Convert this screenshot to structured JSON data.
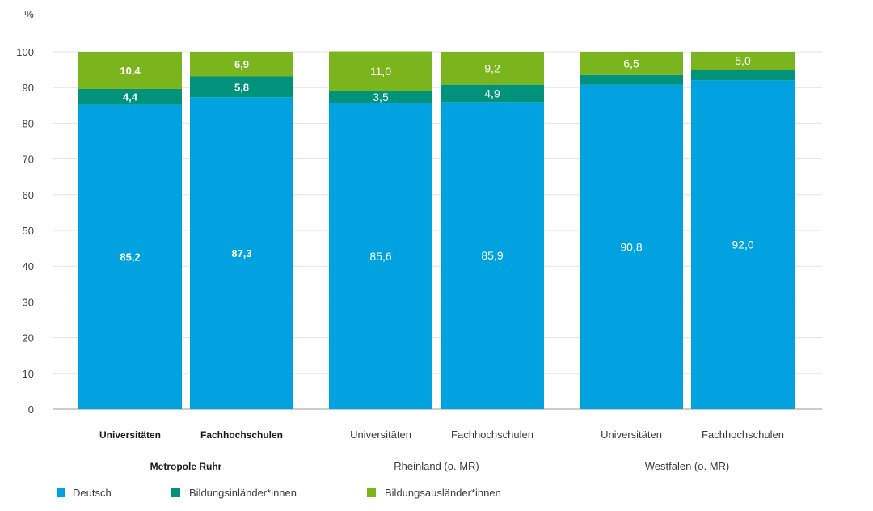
{
  "chart_data": {
    "type": "bar",
    "stacked": true,
    "ylabel": "%",
    "ylim": [
      0,
      100
    ],
    "yticks": [
      0,
      10,
      20,
      30,
      40,
      50,
      60,
      70,
      80,
      90,
      100
    ],
    "grid": true,
    "legend_position": "bottom-left",
    "groups": [
      {
        "label": "Metropole Ruhr",
        "bold": true,
        "categories": [
          "Universitäten",
          "Fachhochschulen"
        ]
      },
      {
        "label": "Rheinland (o. MR)",
        "bold": false,
        "categories": [
          "Universitäten",
          "Fachhochschulen"
        ]
      },
      {
        "label": "Westfalen (o. MR)",
        "bold": false,
        "categories": [
          "Universitäten",
          "Fachhochschulen"
        ]
      }
    ],
    "series": [
      {
        "name": "Deutsch",
        "color": "#00a3e0",
        "values": [
          85.2,
          87.3,
          85.6,
          85.9,
          90.8,
          92.0
        ],
        "labels": [
          "85,2",
          "87,3",
          "85,6",
          "85,9",
          "90,8",
          "92,0"
        ]
      },
      {
        "name": "Bildungsinländer*innen",
        "color": "#00927a",
        "values": [
          4.4,
          5.8,
          3.5,
          4.9,
          2.7,
          3.0
        ],
        "labels": [
          "4,4",
          "5,8",
          "3,5",
          "4,9",
          "",
          ""
        ]
      },
      {
        "name": "Bildungsausländer*innen",
        "color": "#7ab51d",
        "values": [
          10.4,
          6.9,
          11.0,
          9.2,
          6.5,
          5.0
        ],
        "labels": [
          "10,4",
          "6,9",
          "11,0",
          "9,2",
          "6,5",
          "5,0"
        ]
      }
    ]
  }
}
